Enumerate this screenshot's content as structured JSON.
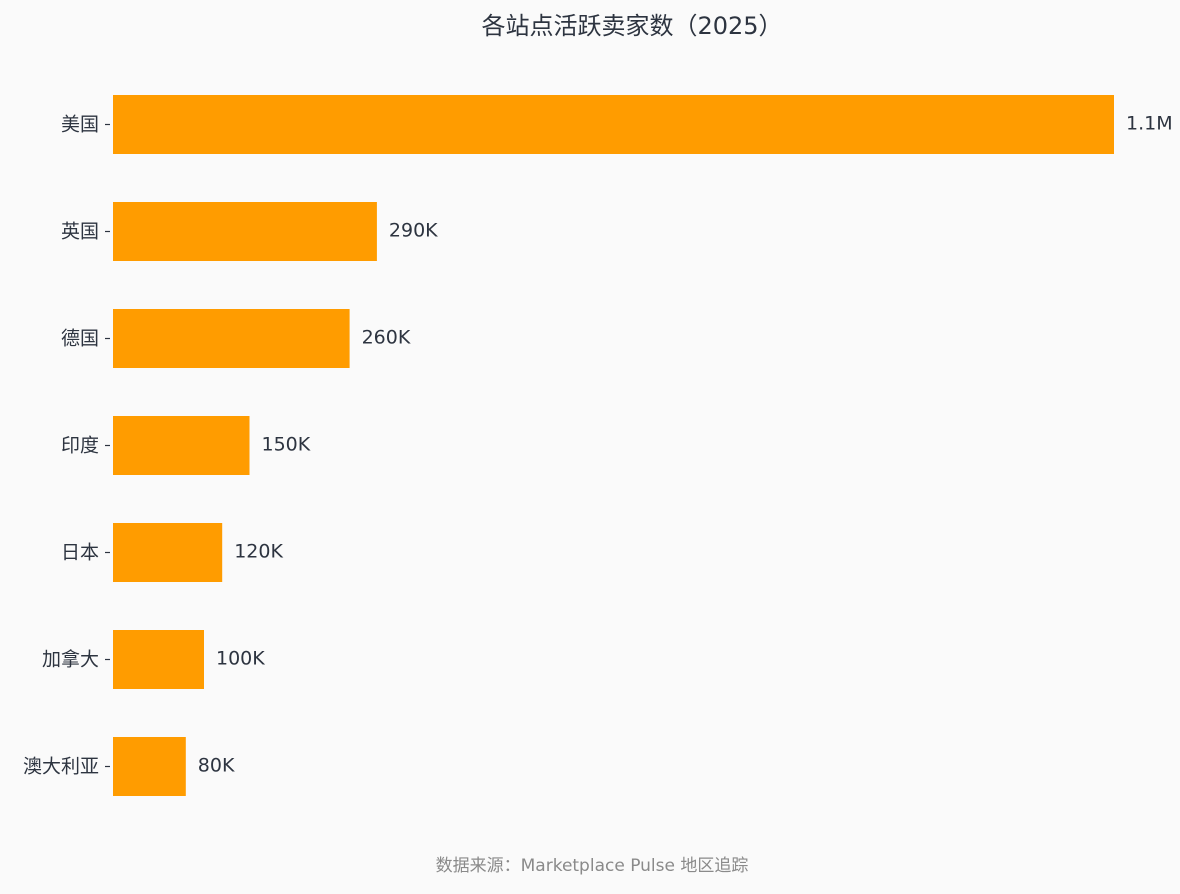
{
  "chart_data": {
    "type": "bar",
    "orientation": "horizontal",
    "title": "各站点活跃卖家数（2025）",
    "categories": [
      "美国",
      "英国",
      "德国",
      "印度",
      "日本",
      "加拿大",
      "澳大利亚"
    ],
    "values": [
      1100000,
      290000,
      260000,
      150000,
      120000,
      100000,
      80000
    ],
    "value_labels": [
      "1.1M",
      "290K",
      "260K",
      "150K",
      "120K",
      "100K",
      "80K"
    ],
    "xlim": [
      0,
      1100000
    ],
    "xlabel": "",
    "ylabel": "",
    "grid": false,
    "legend": "none",
    "source": "数据来源：Marketplace Pulse 地区追踪",
    "colors": {
      "bar": "#ff9c00",
      "text": "#2d3440",
      "axis": "#2d3440",
      "source": "#8a8a8a",
      "background": "#fafafa"
    }
  }
}
